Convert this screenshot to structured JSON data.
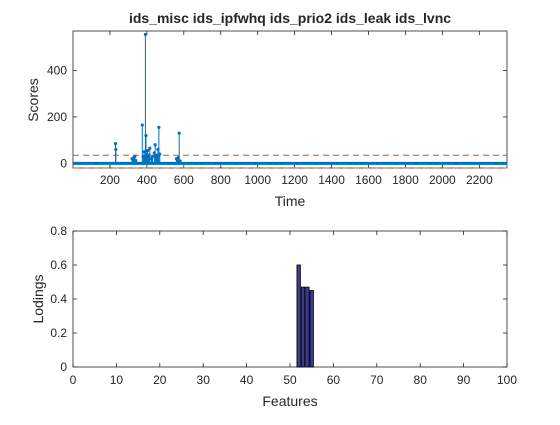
{
  "chart_data": [
    {
      "type": "stem",
      "title": "ids_misc ids_ipfwhq ids_prio2 ids_leak ids_lvnc",
      "xlabel": "Time",
      "ylabel": "Scores",
      "xlim": [
        0,
        2350
      ],
      "ylim": [
        -20,
        570
      ],
      "xticks": [
        200,
        400,
        600,
        800,
        1000,
        1200,
        1400,
        1600,
        1800,
        2000,
        2200
      ],
      "xtick_labels": [
        "200",
        "400",
        "600",
        "800",
        "1000",
        "1200",
        "1400",
        "1600",
        "1800",
        "2000",
        "2200"
      ],
      "yticks": [
        0,
        200,
        400
      ],
      "ytick_labels": [
        "0",
        "200",
        "400"
      ],
      "threshold_upper": 35,
      "threshold_lower": -20,
      "baseline": 0,
      "x": [
        230,
        232,
        320,
        325,
        330,
        335,
        340,
        375,
        380,
        385,
        388,
        392,
        395,
        398,
        400,
        404,
        408,
        412,
        416,
        425,
        430,
        440,
        445,
        450,
        455,
        460,
        465,
        470,
        560,
        565,
        570,
        575,
        580
      ],
      "y": [
        85,
        60,
        20,
        15,
        25,
        30,
        12,
        165,
        30,
        50,
        25,
        555,
        120,
        30,
        40,
        55,
        25,
        35,
        65,
        20,
        30,
        45,
        80,
        25,
        35,
        60,
        155,
        40,
        20,
        15,
        25,
        130,
        10
      ],
      "line_color": "#0072BD",
      "threshold_color": "#D95319"
    },
    {
      "type": "bar",
      "title": "",
      "xlabel": "Features",
      "ylabel": "Lodings",
      "xlim": [
        0,
        100
      ],
      "ylim": [
        0,
        0.8
      ],
      "xticks": [
        0,
        10,
        20,
        30,
        40,
        50,
        60,
        70,
        80,
        90,
        100
      ],
      "xtick_labels": [
        "0",
        "10",
        "20",
        "30",
        "40",
        "50",
        "60",
        "70",
        "80",
        "90",
        "100"
      ],
      "yticks": [
        0,
        0.2,
        0.4,
        0.6,
        0.8
      ],
      "ytick_labels": [
        "0",
        "0.2",
        "0.4",
        "0.6",
        "0.8"
      ],
      "categories": [
        52,
        53,
        54,
        55
      ],
      "values": [
        0.6,
        0.47,
        0.47,
        0.45
      ],
      "bar_color": "#3b3b8f"
    }
  ]
}
